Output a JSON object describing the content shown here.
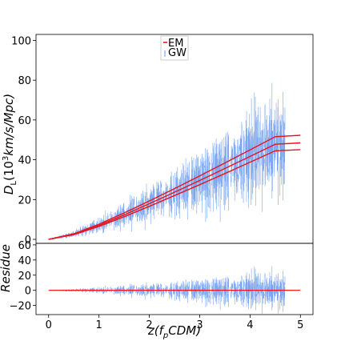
{
  "chart_data": [
    {
      "type": "line",
      "panel": "main",
      "xlabel": "",
      "ylabel_parts": [
        "D",
        "L",
        "(10",
        "3",
        "km/s/Mpc)"
      ],
      "xlim": [
        -0.25,
        5.25
      ],
      "ylim": [
        -2,
        103
      ],
      "yticks": [
        0,
        20,
        40,
        60,
        80,
        100
      ],
      "legend": {
        "position": "top-center",
        "entries": [
          {
            "label": "EM",
            "color": "#ff0000"
          },
          {
            "label": "GW",
            "color": "#6495ed"
          }
        ]
      },
      "em_band": {
        "x": [
          0,
          0.5,
          1,
          1.5,
          2,
          2.5,
          3,
          3.5,
          4,
          4.5,
          5
        ],
        "upper": [
          0,
          2.8,
          7.6,
          13.3,
          19.3,
          25.5,
          31.9,
          38.4,
          45.0,
          51.6,
          52.3
        ],
        "center": [
          0,
          2.6,
          7.0,
          12.3,
          17.9,
          23.7,
          29.6,
          35.6,
          41.7,
          47.8,
          48.5
        ],
        "lower": [
          0,
          2.4,
          6.5,
          11.4,
          16.6,
          22.0,
          27.5,
          33.1,
          38.8,
          44.5,
          45.1
        ]
      },
      "gw_series": {
        "name": "GW",
        "sample_count": 1000,
        "z_range": [
          0.05,
          4.7
        ],
        "scatter_fraction": 0.26,
        "errorbar_fraction": 0.34
      }
    },
    {
      "type": "line",
      "panel": "residual",
      "xlabel_parts": [
        "z(f",
        "p",
        "CDM)"
      ],
      "ylabel": "Residue",
      "xlim": [
        -0.25,
        5.25
      ],
      "xticks": [
        0,
        1,
        2,
        3,
        4,
        5
      ],
      "ylim": [
        -32,
        62
      ],
      "yticks": [
        -20,
        0,
        20,
        40,
        60
      ],
      "zero_line": {
        "y": 0,
        "x_range": [
          0,
          5
        ],
        "color": "#ff0000"
      }
    }
  ]
}
